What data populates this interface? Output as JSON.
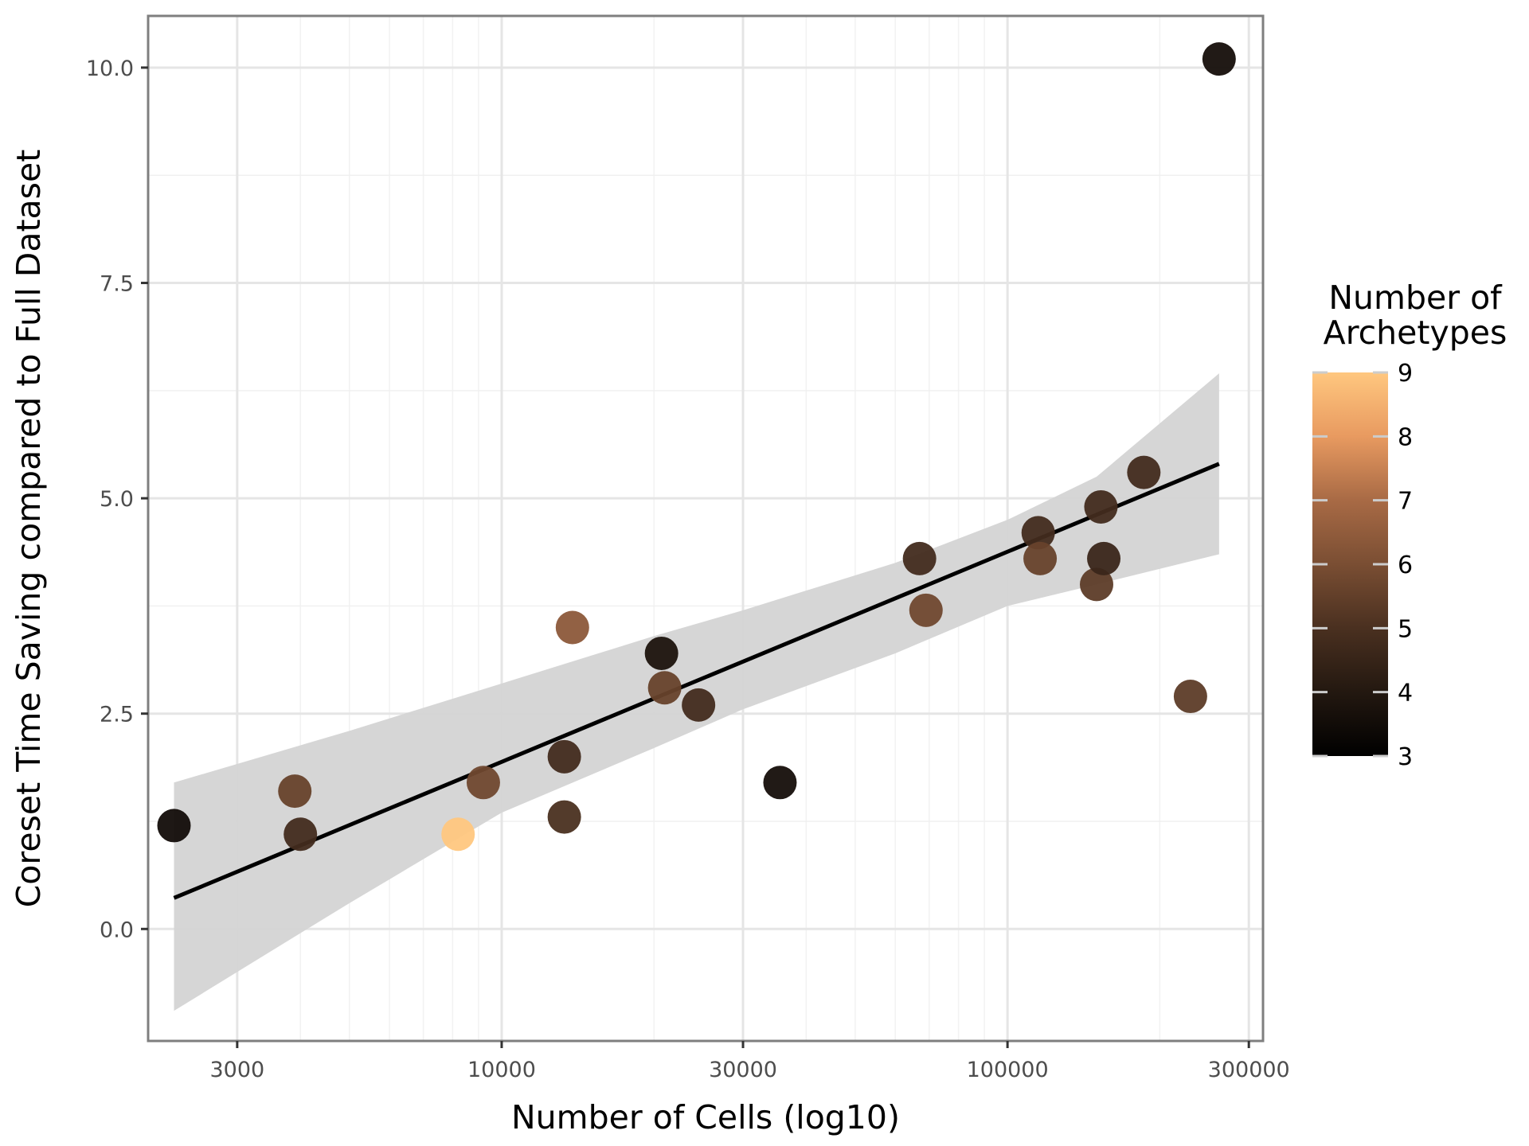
{
  "chart_data": {
    "type": "scatter",
    "title": "",
    "xlabel": "Number of Cells (log10)",
    "ylabel": "Coreset Time Saving compared to Full Dataset",
    "x_scale": "log10",
    "xlim": [
      2000,
      320000
    ],
    "ylim": [
      -1.3,
      10.6
    ],
    "x_ticks": [
      3000,
      10000,
      30000,
      100000,
      300000
    ],
    "x_tick_labels": [
      "3000",
      "10000",
      "30000",
      "100000",
      "300000"
    ],
    "y_ticks": [
      0,
      2.5,
      5,
      7.5,
      10
    ],
    "y_tick_labels": [
      "0.0",
      "2.5",
      "5.0",
      "7.5",
      "10.0"
    ],
    "grid": true,
    "legend": {
      "title_lines": [
        "Number of",
        "Archetypes"
      ],
      "type": "colorbar",
      "placement": "right",
      "range": [
        3,
        9
      ],
      "ticks": [
        3,
        4,
        5,
        6,
        7,
        8,
        9
      ],
      "tick_labels": [
        "3",
        "4",
        "5",
        "6",
        "7",
        "8",
        "9"
      ],
      "colors": [
        "#000000",
        "#231810",
        "#4a3020",
        "#7a4e33",
        "#a86a45",
        "#e89a60",
        "#ffc77f"
      ]
    },
    "points": [
      {
        "x": 2250,
        "y": 1.2,
        "archetypes": 3.5
      },
      {
        "x": 3900,
        "y": 1.6,
        "archetypes": 5.6
      },
      {
        "x": 4000,
        "y": 1.1,
        "archetypes": 4.8
      },
      {
        "x": 8200,
        "y": 1.1,
        "archetypes": 9.0
      },
      {
        "x": 9200,
        "y": 1.7,
        "archetypes": 5.8
      },
      {
        "x": 13300,
        "y": 1.3,
        "archetypes": 5.0
      },
      {
        "x": 13300,
        "y": 2.0,
        "archetypes": 4.8
      },
      {
        "x": 13800,
        "y": 3.5,
        "archetypes": 6.4
      },
      {
        "x": 20700,
        "y": 3.2,
        "archetypes": 3.8
      },
      {
        "x": 21000,
        "y": 2.8,
        "archetypes": 5.6
      },
      {
        "x": 24500,
        "y": 2.6,
        "archetypes": 4.8
      },
      {
        "x": 35500,
        "y": 1.7,
        "archetypes": 3.6
      },
      {
        "x": 67000,
        "y": 4.3,
        "archetypes": 4.8
      },
      {
        "x": 69000,
        "y": 3.7,
        "archetypes": 5.8
      },
      {
        "x": 115000,
        "y": 4.6,
        "archetypes": 4.8
      },
      {
        "x": 116000,
        "y": 4.3,
        "archetypes": 5.6
      },
      {
        "x": 150000,
        "y": 4.0,
        "archetypes": 5.4
      },
      {
        "x": 153000,
        "y": 4.9,
        "archetypes": 4.8
      },
      {
        "x": 155000,
        "y": 4.3,
        "archetypes": 4.6
      },
      {
        "x": 186000,
        "y": 5.3,
        "archetypes": 4.8
      },
      {
        "x": 230000,
        "y": 2.7,
        "archetypes": 5.4
      },
      {
        "x": 262000,
        "y": 10.1,
        "archetypes": 3.6
      }
    ],
    "fit_line": {
      "color": "#000000",
      "x": [
        2250,
        262000
      ],
      "y": [
        0.36,
        5.4
      ]
    },
    "confidence_band": {
      "color": "#d4d4d4",
      "x": [
        2250,
        5000,
        10000,
        20000,
        30000,
        60000,
        100000,
        150000,
        262000
      ],
      "upper": [
        1.7,
        2.3,
        2.85,
        3.4,
        3.7,
        4.25,
        4.75,
        5.25,
        6.45
      ],
      "lower": [
        -0.95,
        0.3,
        1.35,
        2.1,
        2.55,
        3.2,
        3.75,
        4.0,
        4.35
      ]
    }
  }
}
